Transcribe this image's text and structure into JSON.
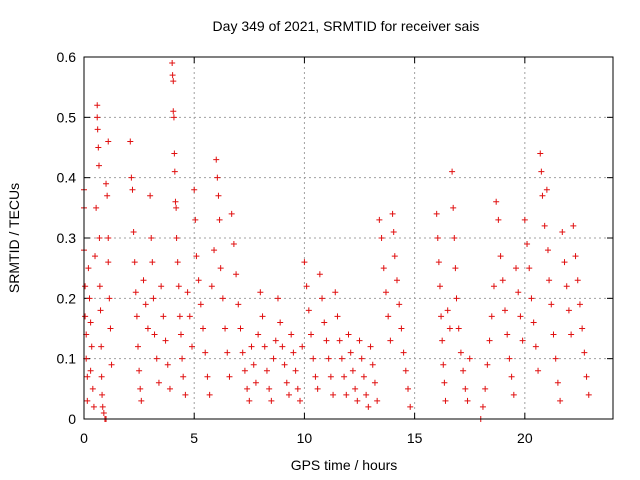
{
  "chart_data": {
    "type": "scatter",
    "title": "Day 349 of 2021, SRMTID for receiver sais",
    "xlabel": "GPS time / hours",
    "ylabel": "SRMTID / TECUs",
    "xlim": [
      0,
      24
    ],
    "ylim": [
      0,
      0.6
    ],
    "xticks": [
      0,
      5,
      10,
      15,
      20
    ],
    "xtick_labels": [
      "0",
      "5",
      "10",
      "15",
      "20"
    ],
    "yticks": [
      0,
      0.1,
      0.2,
      0.3,
      0.4,
      0.5,
      0.6
    ],
    "ytick_labels": [
      "0",
      "0.1",
      "0.2",
      "0.3",
      "0.4",
      "0.5",
      "0.6"
    ],
    "grid": true,
    "marker": "+",
    "color": "#e01010",
    "series": [
      {
        "name": "SRMTID",
        "points": [
          [
            0.0,
            0.38
          ],
          [
            0.0,
            0.35
          ],
          [
            0.0,
            0.28
          ],
          [
            0.05,
            0.22
          ],
          [
            0.05,
            0.17
          ],
          [
            0.1,
            0.14
          ],
          [
            0.1,
            0.1
          ],
          [
            0.15,
            0.07
          ],
          [
            0.15,
            0.03
          ],
          [
            0.2,
            0.25
          ],
          [
            0.25,
            0.2
          ],
          [
            0.3,
            0.16
          ],
          [
            0.3,
            0.08
          ],
          [
            0.35,
            0.12
          ],
          [
            0.4,
            0.05
          ],
          [
            0.45,
            0.02
          ],
          [
            0.5,
            0.27
          ],
          [
            0.55,
            0.35
          ],
          [
            0.6,
            0.52
          ],
          [
            0.6,
            0.5
          ],
          [
            0.62,
            0.48
          ],
          [
            0.65,
            0.45
          ],
          [
            0.68,
            0.42
          ],
          [
            0.7,
            0.3
          ],
          [
            0.72,
            0.22
          ],
          [
            0.75,
            0.18
          ],
          [
            0.78,
            0.12
          ],
          [
            0.8,
            0.07
          ],
          [
            0.82,
            0.04
          ],
          [
            0.85,
            0.02
          ],
          [
            0.9,
            0.01
          ],
          [
            0.95,
            0.0
          ],
          [
            1.0,
            0.39
          ],
          [
            1.05,
            0.37
          ],
          [
            1.1,
            0.3
          ],
          [
            1.1,
            0.26
          ],
          [
            1.15,
            0.2
          ],
          [
            1.2,
            0.15
          ],
          [
            1.25,
            0.09
          ],
          [
            1.0,
            0.0
          ],
          [
            1.1,
            0.46
          ],
          [
            2.1,
            0.46
          ],
          [
            2.15,
            0.4
          ],
          [
            2.2,
            0.38
          ],
          [
            2.25,
            0.31
          ],
          [
            2.3,
            0.26
          ],
          [
            2.35,
            0.21
          ],
          [
            2.4,
            0.17
          ],
          [
            2.45,
            0.12
          ],
          [
            2.5,
            0.08
          ],
          [
            2.55,
            0.05
          ],
          [
            2.6,
            0.03
          ],
          [
            2.7,
            0.23
          ],
          [
            2.8,
            0.19
          ],
          [
            2.9,
            0.15
          ],
          [
            3.0,
            0.37
          ],
          [
            3.05,
            0.3
          ],
          [
            3.1,
            0.26
          ],
          [
            3.15,
            0.2
          ],
          [
            3.2,
            0.14
          ],
          [
            3.3,
            0.1
          ],
          [
            3.4,
            0.06
          ],
          [
            3.5,
            0.22
          ],
          [
            3.6,
            0.17
          ],
          [
            3.7,
            0.13
          ],
          [
            3.8,
            0.09
          ],
          [
            3.9,
            0.05
          ],
          [
            4.0,
            0.59
          ],
          [
            4.02,
            0.57
          ],
          [
            4.05,
            0.56
          ],
          [
            4.05,
            0.51
          ],
          [
            4.08,
            0.5
          ],
          [
            4.1,
            0.44
          ],
          [
            4.12,
            0.41
          ],
          [
            4.15,
            0.36
          ],
          [
            4.18,
            0.35
          ],
          [
            4.2,
            0.3
          ],
          [
            4.25,
            0.26
          ],
          [
            4.3,
            0.22
          ],
          [
            4.35,
            0.17
          ],
          [
            4.4,
            0.14
          ],
          [
            4.45,
            0.1
          ],
          [
            4.5,
            0.07
          ],
          [
            4.6,
            0.04
          ],
          [
            4.7,
            0.21
          ],
          [
            4.8,
            0.17
          ],
          [
            4.9,
            0.12
          ],
          [
            5.0,
            0.38
          ],
          [
            5.05,
            0.33
          ],
          [
            5.1,
            0.27
          ],
          [
            5.2,
            0.23
          ],
          [
            5.3,
            0.19
          ],
          [
            5.4,
            0.15
          ],
          [
            5.5,
            0.11
          ],
          [
            5.6,
            0.07
          ],
          [
            5.7,
            0.04
          ],
          [
            5.8,
            0.22
          ],
          [
            5.9,
            0.28
          ],
          [
            6.0,
            0.43
          ],
          [
            6.05,
            0.4
          ],
          [
            6.1,
            0.37
          ],
          [
            6.15,
            0.33
          ],
          [
            6.2,
            0.25
          ],
          [
            6.3,
            0.2
          ],
          [
            6.4,
            0.15
          ],
          [
            6.5,
            0.11
          ],
          [
            6.6,
            0.07
          ],
          [
            6.7,
            0.34
          ],
          [
            6.8,
            0.29
          ],
          [
            6.9,
            0.24
          ],
          [
            7.0,
            0.19
          ],
          [
            7.1,
            0.15
          ],
          [
            7.2,
            0.11
          ],
          [
            7.3,
            0.08
          ],
          [
            7.4,
            0.05
          ],
          [
            7.5,
            0.03
          ],
          [
            7.6,
            0.12
          ],
          [
            7.7,
            0.09
          ],
          [
            7.8,
            0.06
          ],
          [
            7.9,
            0.14
          ],
          [
            8.0,
            0.21
          ],
          [
            8.1,
            0.17
          ],
          [
            8.2,
            0.12
          ],
          [
            8.3,
            0.08
          ],
          [
            8.4,
            0.05
          ],
          [
            8.5,
            0.03
          ],
          [
            8.6,
            0.1
          ],
          [
            8.7,
            0.13
          ],
          [
            8.8,
            0.2
          ],
          [
            8.9,
            0.16
          ],
          [
            9.0,
            0.12
          ],
          [
            9.1,
            0.09
          ],
          [
            9.2,
            0.06
          ],
          [
            9.3,
            0.04
          ],
          [
            9.4,
            0.14
          ],
          [
            9.5,
            0.11
          ],
          [
            9.6,
            0.08
          ],
          [
            9.7,
            0.05
          ],
          [
            9.8,
            0.03
          ],
          [
            9.9,
            0.12
          ],
          [
            10.0,
            0.26
          ],
          [
            10.1,
            0.22
          ],
          [
            10.2,
            0.18
          ],
          [
            10.3,
            0.14
          ],
          [
            10.4,
            0.1
          ],
          [
            10.5,
            0.07
          ],
          [
            10.6,
            0.05
          ],
          [
            10.7,
            0.24
          ],
          [
            10.8,
            0.2
          ],
          [
            10.9,
            0.16
          ],
          [
            11.0,
            0.13
          ],
          [
            11.1,
            0.1
          ],
          [
            11.2,
            0.07
          ],
          [
            11.3,
            0.04
          ],
          [
            11.4,
            0.21
          ],
          [
            11.5,
            0.17
          ],
          [
            11.6,
            0.13
          ],
          [
            11.7,
            0.1
          ],
          [
            11.8,
            0.07
          ],
          [
            11.9,
            0.04
          ],
          [
            12.0,
            0.14
          ],
          [
            12.1,
            0.11
          ],
          [
            12.2,
            0.08
          ],
          [
            12.3,
            0.05
          ],
          [
            12.4,
            0.03
          ],
          [
            12.5,
            0.13
          ],
          [
            12.6,
            0.1
          ],
          [
            12.7,
            0.07
          ],
          [
            12.8,
            0.04
          ],
          [
            12.9,
            0.02
          ],
          [
            13.0,
            0.12
          ],
          [
            13.1,
            0.09
          ],
          [
            13.2,
            0.06
          ],
          [
            13.3,
            0.03
          ],
          [
            13.4,
            0.33
          ],
          [
            13.5,
            0.3
          ],
          [
            13.6,
            0.25
          ],
          [
            13.7,
            0.21
          ],
          [
            13.8,
            0.17
          ],
          [
            13.9,
            0.13
          ],
          [
            14.0,
            0.34
          ],
          [
            14.05,
            0.31
          ],
          [
            14.1,
            0.27
          ],
          [
            14.2,
            0.23
          ],
          [
            14.3,
            0.19
          ],
          [
            14.4,
            0.15
          ],
          [
            14.5,
            0.11
          ],
          [
            14.6,
            0.08
          ],
          [
            14.7,
            0.05
          ],
          [
            14.8,
            0.02
          ],
          [
            16.0,
            0.34
          ],
          [
            16.05,
            0.3
          ],
          [
            16.1,
            0.26
          ],
          [
            16.15,
            0.22
          ],
          [
            16.2,
            0.17
          ],
          [
            16.25,
            0.13
          ],
          [
            16.3,
            0.09
          ],
          [
            16.35,
            0.06
          ],
          [
            16.4,
            0.03
          ],
          [
            16.5,
            0.18
          ],
          [
            16.6,
            0.15
          ],
          [
            16.7,
            0.41
          ],
          [
            16.75,
            0.35
          ],
          [
            16.8,
            0.3
          ],
          [
            16.85,
            0.25
          ],
          [
            16.9,
            0.2
          ],
          [
            17.0,
            0.15
          ],
          [
            17.1,
            0.11
          ],
          [
            17.2,
            0.08
          ],
          [
            17.3,
            0.05
          ],
          [
            17.4,
            0.03
          ],
          [
            17.5,
            0.1
          ],
          [
            18.0,
            0.0
          ],
          [
            18.1,
            0.02
          ],
          [
            18.2,
            0.05
          ],
          [
            18.3,
            0.09
          ],
          [
            18.4,
            0.13
          ],
          [
            18.5,
            0.17
          ],
          [
            18.6,
            0.22
          ],
          [
            18.7,
            0.36
          ],
          [
            18.8,
            0.33
          ],
          [
            18.9,
            0.27
          ],
          [
            19.0,
            0.23
          ],
          [
            19.1,
            0.18
          ],
          [
            19.2,
            0.14
          ],
          [
            19.3,
            0.1
          ],
          [
            19.4,
            0.07
          ],
          [
            19.5,
            0.04
          ],
          [
            19.6,
            0.25
          ],
          [
            19.7,
            0.21
          ],
          [
            19.8,
            0.17
          ],
          [
            19.9,
            0.13
          ],
          [
            20.0,
            0.33
          ],
          [
            20.1,
            0.29
          ],
          [
            20.2,
            0.25
          ],
          [
            20.3,
            0.2
          ],
          [
            20.4,
            0.16
          ],
          [
            20.5,
            0.12
          ],
          [
            20.6,
            0.08
          ],
          [
            20.7,
            0.44
          ],
          [
            20.75,
            0.41
          ],
          [
            20.8,
            0.37
          ],
          [
            20.9,
            0.32
          ],
          [
            21.0,
            0.38
          ],
          [
            21.05,
            0.28
          ],
          [
            21.1,
            0.23
          ],
          [
            21.2,
            0.19
          ],
          [
            21.3,
            0.14
          ],
          [
            21.4,
            0.1
          ],
          [
            21.5,
            0.06
          ],
          [
            21.6,
            0.03
          ],
          [
            21.7,
            0.31
          ],
          [
            21.8,
            0.26
          ],
          [
            21.9,
            0.22
          ],
          [
            22.0,
            0.18
          ],
          [
            22.1,
            0.14
          ],
          [
            22.2,
            0.32
          ],
          [
            22.3,
            0.27
          ],
          [
            22.4,
            0.23
          ],
          [
            22.5,
            0.19
          ],
          [
            22.6,
            0.15
          ],
          [
            22.7,
            0.11
          ],
          [
            22.8,
            0.07
          ],
          [
            22.9,
            0.04
          ]
        ]
      }
    ]
  }
}
